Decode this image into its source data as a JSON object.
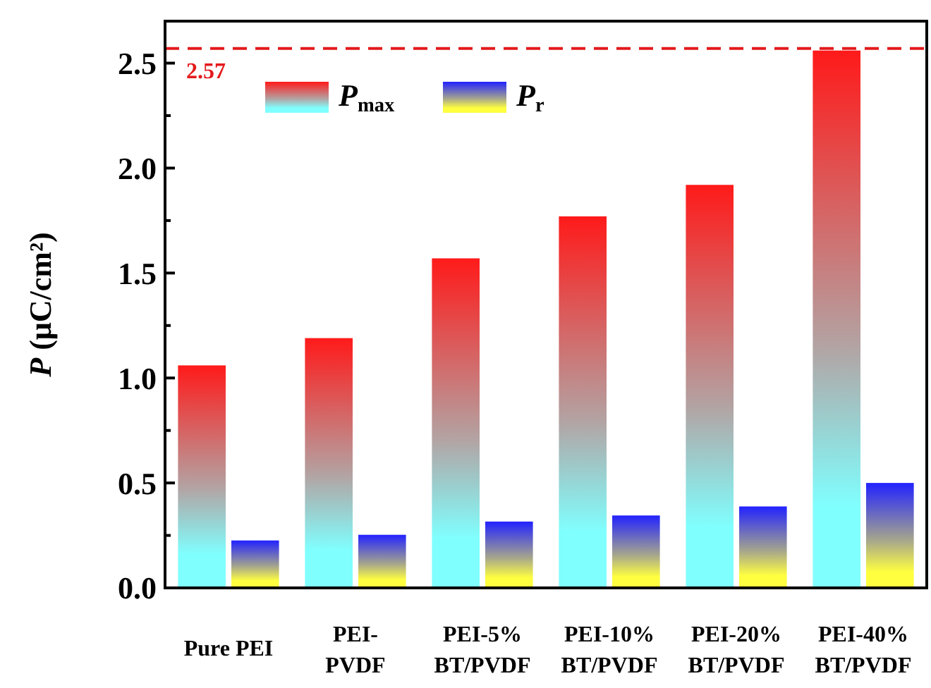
{
  "chart_data": {
    "type": "bar",
    "ylabel": "P (μC/cm²)",
    "categories": [
      "Pure PEI",
      "PEI-\nPVDF",
      "PEI-5%\nBT/PVDF",
      "PEI-10%\nBT/PVDF",
      "PEI-20%\nBT/PVDF",
      "PEI-40%\nBT/PVDF"
    ],
    "series": [
      {
        "name": "P$_{max}$",
        "color": "#ff1a1a",
        "values": [
          1.06,
          1.19,
          1.57,
          1.77,
          1.92,
          2.56
        ]
      },
      {
        "name": "P$_{r}$",
        "color": "#2222ff",
        "values": [
          0.226,
          0.253,
          0.316,
          0.345,
          0.388,
          0.5
        ]
      }
    ],
    "ylim": [
      0,
      2.7
    ],
    "yticks": [
      {
        "value": 0,
        "label": "0.0"
      },
      {
        "value": 0.25,
        "label": null
      },
      {
        "value": 0.5,
        "label": "0.5"
      },
      {
        "value": 0.75,
        "label": null
      },
      {
        "value": 1,
        "label": "1.0"
      },
      {
        "value": 1.25,
        "label": null
      },
      {
        "value": 1.5,
        "label": "1.5"
      },
      {
        "value": 1.75,
        "label": null
      },
      {
        "value": 2,
        "label": "2.0"
      },
      {
        "value": 2.25,
        "label": null
      },
      {
        "value": 2.5,
        "label": "2.5"
      }
    ],
    "ref_lines": [
      {
        "axis": "y",
        "value": 2.57,
        "label": "2.57",
        "color": "#e31a1c",
        "line_style": "dashed"
      }
    ],
    "legend": "top left",
    "grid": false
  }
}
